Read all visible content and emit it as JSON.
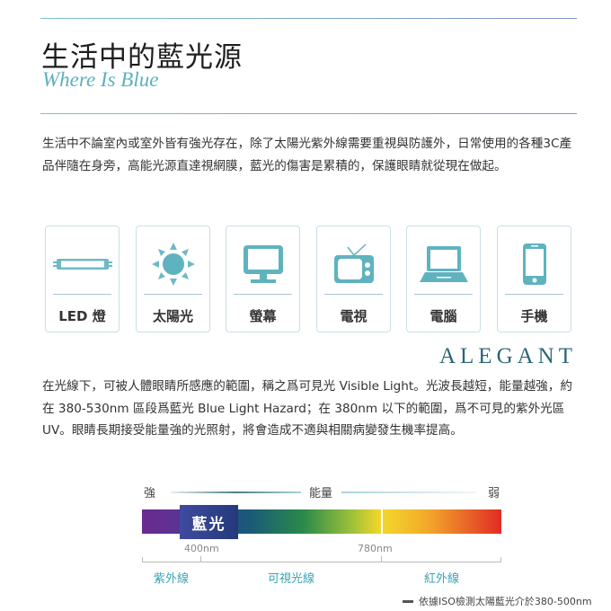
{
  "header": {
    "title": "生活中的藍光源",
    "subtitle": "Where Is Blue"
  },
  "intro": "生活中不論室內或室外皆有強光存在，除了太陽光紫外線需要重視與防護外，日常使用的各種3C產品伴隨在身旁，高能光源直達視網膜，藍光的傷害是累積的，保護眼睛就從現在做起。",
  "sources": [
    {
      "label": "LED 燈",
      "icon": "led-tube-icon"
    },
    {
      "label": "太陽光",
      "icon": "sun-icon"
    },
    {
      "label": "螢幕",
      "icon": "monitor-icon"
    },
    {
      "label": "電視",
      "icon": "tv-icon"
    },
    {
      "label": "電腦",
      "icon": "laptop-icon"
    },
    {
      "label": "手機",
      "icon": "phone-icon"
    }
  ],
  "brand": "ALEGANT",
  "body": "在光線下，可被人體眼睛所感應的範圍，稱之爲可見光 Visible Light。光波長越短，能量越強，約在 380-530nm 區段爲藍光 Blue Light Hazard；在 380nm 以下的範圍，爲不可見的紫外光區 UV。眼睛長期接受能量強的光照射，將會造成不適與相關病變發生機率提高。",
  "spectrum": {
    "strong": "強",
    "energy": "能量",
    "weak": "弱",
    "blue_label": "藍光",
    "mark1": "400nm",
    "mark2": "780nm",
    "bands": [
      "紫外線",
      "可視光線",
      "紅外線"
    ]
  },
  "footnote": "依據ISO檢測太陽藍光介於380-500nm",
  "colors": {
    "accent": "#5cb0bf",
    "icon": "#5fb3bf",
    "brand": "#2a6674"
  }
}
